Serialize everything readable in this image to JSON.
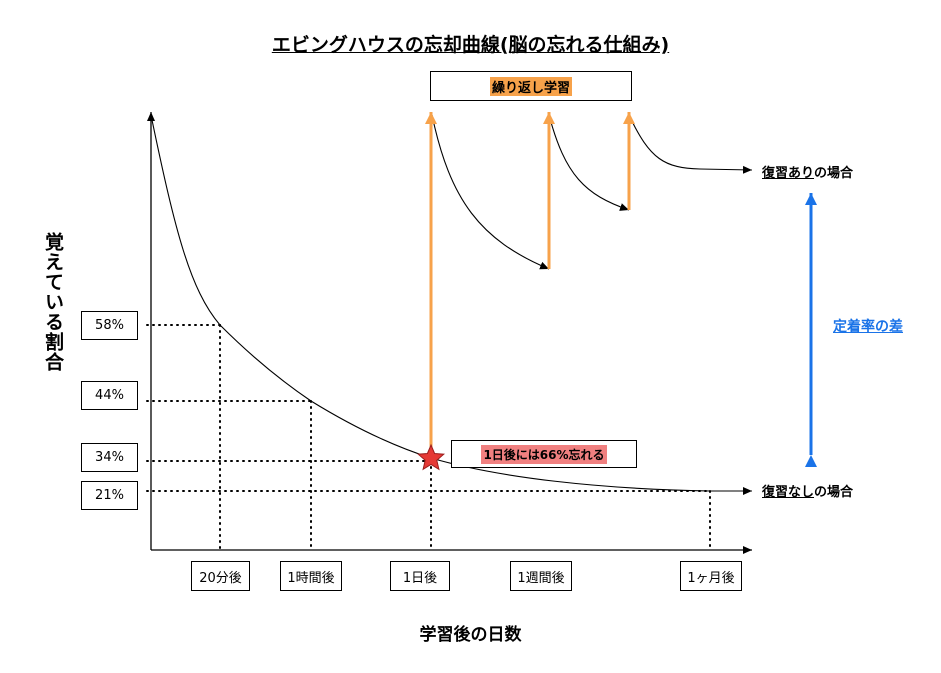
{
  "title": "エビングハウスの忘却曲線(脳の忘れる仕組み)",
  "y_axis_label": "覚えている割合",
  "x_axis_label": "学習後の日数",
  "y_ticks": [
    "58%",
    "44%",
    "34%",
    "21%"
  ],
  "x_ticks": [
    "20分後",
    "1時間後",
    "1日後",
    "1週間後",
    "1ヶ月後"
  ],
  "review_banner": "繰り返し学習",
  "annotation": "1日後には66%忘れる",
  "with_review": {
    "underlined": "復習あり",
    "rest": "の場合"
  },
  "without_review": {
    "underlined": "復習なし",
    "rest": "の場合"
  },
  "difference_label": "定着率の差",
  "colors": {
    "review_arrows": "#f7a24a",
    "banner_highlight": "#f7a24a",
    "annotation_highlight": "#f08080",
    "difference_arrow": "#1a73e8",
    "star": "#e53935"
  }
}
